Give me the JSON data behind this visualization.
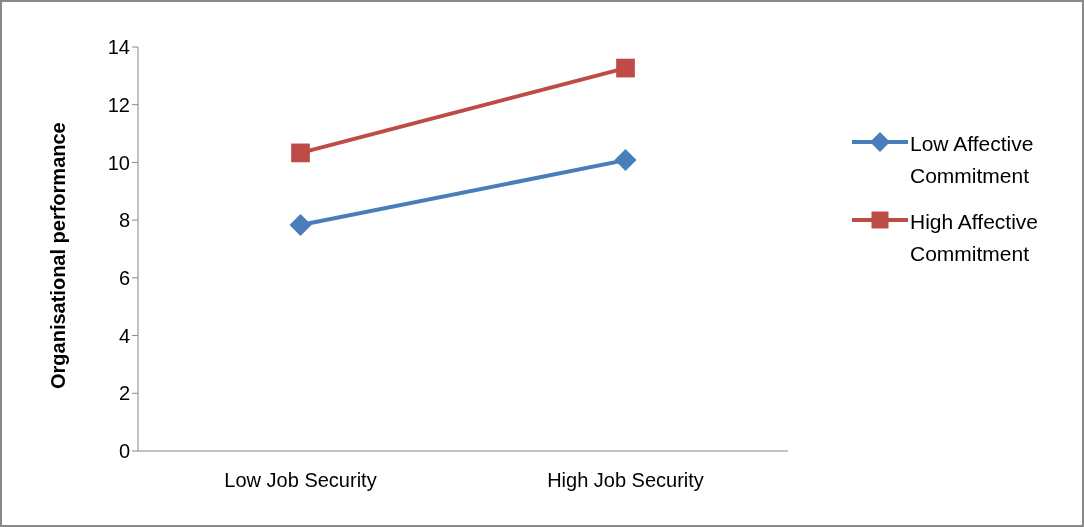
{
  "chart_data": {
    "type": "line",
    "ylabel": "Organisational performance",
    "categories": [
      "Low Job Security",
      "High Job Security"
    ],
    "ylim": [
      0,
      14
    ],
    "yticks": [
      0,
      2,
      4,
      6,
      8,
      10,
      12,
      14
    ],
    "grid": false,
    "legend": "right",
    "series": [
      {
        "name": "Low Affective Commitment",
        "color": "#4a7ebb",
        "values": [
          7.83,
          10.08
        ],
        "marker": "diamond"
      },
      {
        "name": "High Affective Commitment",
        "color": "#be4b48",
        "values": [
          10.33,
          13.27
        ],
        "marker": "square"
      }
    ]
  }
}
